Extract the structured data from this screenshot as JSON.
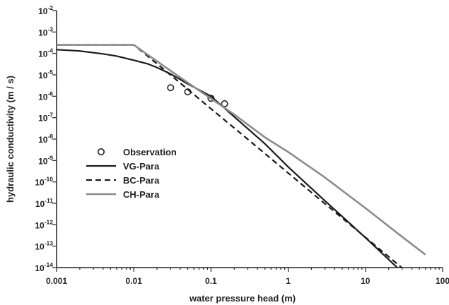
{
  "chart_data": {
    "type": "line",
    "title": "",
    "xlabel": "water pressure head (m)",
    "ylabel": "hydraulic conductivity (m / s)",
    "x_scale": "log",
    "y_scale": "log",
    "xlim": [
      0.001,
      100
    ],
    "ylim": [
      1e-14,
      0.01
    ],
    "grid": false,
    "legend_position": "middle-left",
    "x_ticks": [
      {
        "value": 0.001,
        "label": "0.001"
      },
      {
        "value": 0.01,
        "label": "0.01"
      },
      {
        "value": 0.1,
        "label": "0.1"
      },
      {
        "value": 1,
        "label": "1"
      },
      {
        "value": 10,
        "label": "10"
      },
      {
        "value": 100,
        "label": "100"
      }
    ],
    "y_ticks": [
      {
        "exp": -14,
        "base": "10",
        "sup": "-14"
      },
      {
        "exp": -13,
        "base": "10",
        "sup": "-13"
      },
      {
        "exp": -12,
        "base": "10",
        "sup": "-12"
      },
      {
        "exp": -11,
        "base": "10",
        "sup": "-11"
      },
      {
        "exp": -10,
        "base": "10",
        "sup": "-10"
      },
      {
        "exp": -9,
        "base": "10",
        "sup": "-9"
      },
      {
        "exp": -8,
        "base": "10",
        "sup": "-8"
      },
      {
        "exp": -7,
        "base": "10",
        "sup": "-7"
      },
      {
        "exp": -6,
        "base": "10",
        "sup": "-6"
      },
      {
        "exp": -5,
        "base": "10",
        "sup": "-5"
      },
      {
        "exp": -4,
        "base": "10",
        "sup": "-4"
      },
      {
        "exp": -3,
        "base": "10",
        "sup": "-3"
      },
      {
        "exp": -2,
        "base": "10",
        "sup": "-2"
      }
    ],
    "series": [
      {
        "name": "Observation",
        "kind": "scatter",
        "marker": "open-circle",
        "color": "#222222",
        "points": [
          [
            0.03,
            2.5e-06
          ],
          [
            0.05,
            1.6e-06
          ],
          [
            0.1,
            8e-07
          ],
          [
            0.15,
            4.5e-07
          ]
        ]
      },
      {
        "name": "VG-Para",
        "kind": "line",
        "style": "solid",
        "color": "#1a1a1a",
        "points": [
          [
            0.001,
            0.00015
          ],
          [
            0.002,
            0.00013
          ],
          [
            0.004,
            9.5e-05
          ],
          [
            0.006,
            7.5e-05
          ],
          [
            0.01,
            4.8e-05
          ],
          [
            0.015,
            3.3e-05
          ],
          [
            0.02,
            2.2e-05
          ],
          [
            0.03,
            1.1e-05
          ],
          [
            0.05,
            3.8e-06
          ],
          [
            0.1,
            1e-06
          ],
          [
            0.2,
            1.1e-07
          ],
          [
            0.5,
            6e-09
          ],
          [
            1,
            5e-10
          ],
          [
            3,
            1.3e-11
          ],
          [
            10,
            2.5e-13
          ],
          [
            30,
            6e-15
          ],
          [
            45,
            1e-15
          ]
        ]
      },
      {
        "name": "BC-Para",
        "kind": "line",
        "style": "dashed",
        "color": "#1a1a1a",
        "points": [
          [
            0.001,
            0.00025
          ],
          [
            0.01,
            0.00025
          ],
          [
            0.02,
            3.3e-05
          ],
          [
            0.05,
            2.1e-06
          ],
          [
            0.1,
            2.6e-07
          ],
          [
            0.2,
            3.3e-08
          ],
          [
            0.5,
            2.1e-09
          ],
          [
            1,
            2.6e-10
          ],
          [
            3,
            9.5e-12
          ],
          [
            10,
            2.6e-13
          ],
          [
            30,
            9.5e-15
          ],
          [
            40,
            4e-15
          ]
        ]
      },
      {
        "name": "CH-Para",
        "kind": "line",
        "style": "solid",
        "color": "#8c8c8c",
        "points": [
          [
            0.001,
            0.00025
          ],
          [
            0.01,
            0.00025
          ],
          [
            0.02,
            4.3e-05
          ],
          [
            0.05,
            4.3e-06
          ],
          [
            0.1,
            7.8e-07
          ],
          [
            0.2,
            1.4e-07
          ],
          [
            0.5,
            1.2e-08
          ],
          [
            1,
            2.5e-09
          ],
          [
            3,
            1.6e-10
          ],
          [
            10,
            6e-12
          ],
          [
            30,
            2.7e-13
          ],
          [
            60,
            4e-14
          ]
        ]
      }
    ]
  }
}
